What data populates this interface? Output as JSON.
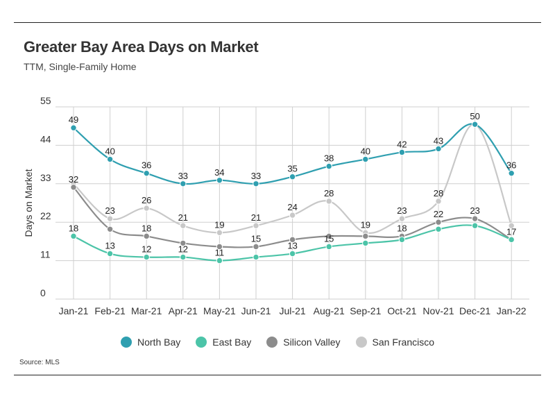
{
  "header": {
    "title": "Greater Bay Area Days on Market",
    "subtitle": "TTM, Single-Family Home"
  },
  "footer": {
    "source": "Source:  MLS"
  },
  "chart_data": {
    "type": "line",
    "title": "Greater Bay Area Days on Market",
    "subtitle": "TTM, Single-Family Home",
    "xlabel": "",
    "ylabel": "Days on Market",
    "ylim": [
      0,
      55
    ],
    "yticks": [
      0,
      11,
      22,
      33,
      44,
      55
    ],
    "categories": [
      "Jan-21",
      "Feb-21",
      "Mar-21",
      "Apr-21",
      "May-21",
      "Jun-21",
      "Jul-21",
      "Aug-21",
      "Sep-21",
      "Oct-21",
      "Nov-21",
      "Dec-21",
      "Jan-22"
    ],
    "grid": true,
    "legend_position": "bottom",
    "series": [
      {
        "name": "North Bay",
        "color": "#2f9fb0",
        "values": [
          49,
          40,
          36,
          33,
          34,
          33,
          35,
          38,
          40,
          42,
          43,
          50,
          36
        ]
      },
      {
        "name": "East Bay",
        "color": "#4cc4a8",
        "values": [
          18,
          13,
          12,
          12,
          11,
          12,
          13,
          15,
          16,
          17,
          20,
          21,
          17
        ]
      },
      {
        "name": "Silicon Valley",
        "color": "#8c8c8c",
        "values": [
          32,
          20,
          18,
          16,
          15,
          15,
          17,
          18,
          18,
          18,
          22,
          23,
          17
        ]
      },
      {
        "name": "San Francisco",
        "color": "#c8c8c8",
        "values": [
          33,
          23,
          26,
          21,
          19,
          21,
          24,
          28,
          19,
          23,
          28,
          50,
          21
        ]
      }
    ],
    "data_labels": [
      {
        "series": "North Bay",
        "shown": [
          0,
          1,
          2,
          3,
          4,
          5,
          6,
          7,
          8,
          9,
          10,
          11,
          12
        ]
      },
      {
        "series": "East Bay",
        "shown": [
          0,
          1,
          2,
          3,
          4,
          6,
          7
        ]
      },
      {
        "series": "Silicon Valley",
        "shown": [
          0,
          2,
          5,
          9,
          10,
          11,
          12
        ]
      },
      {
        "series": "San Francisco",
        "shown": [
          1,
          2,
          3,
          4,
          5,
          6,
          7,
          8,
          9,
          10
        ]
      }
    ]
  }
}
